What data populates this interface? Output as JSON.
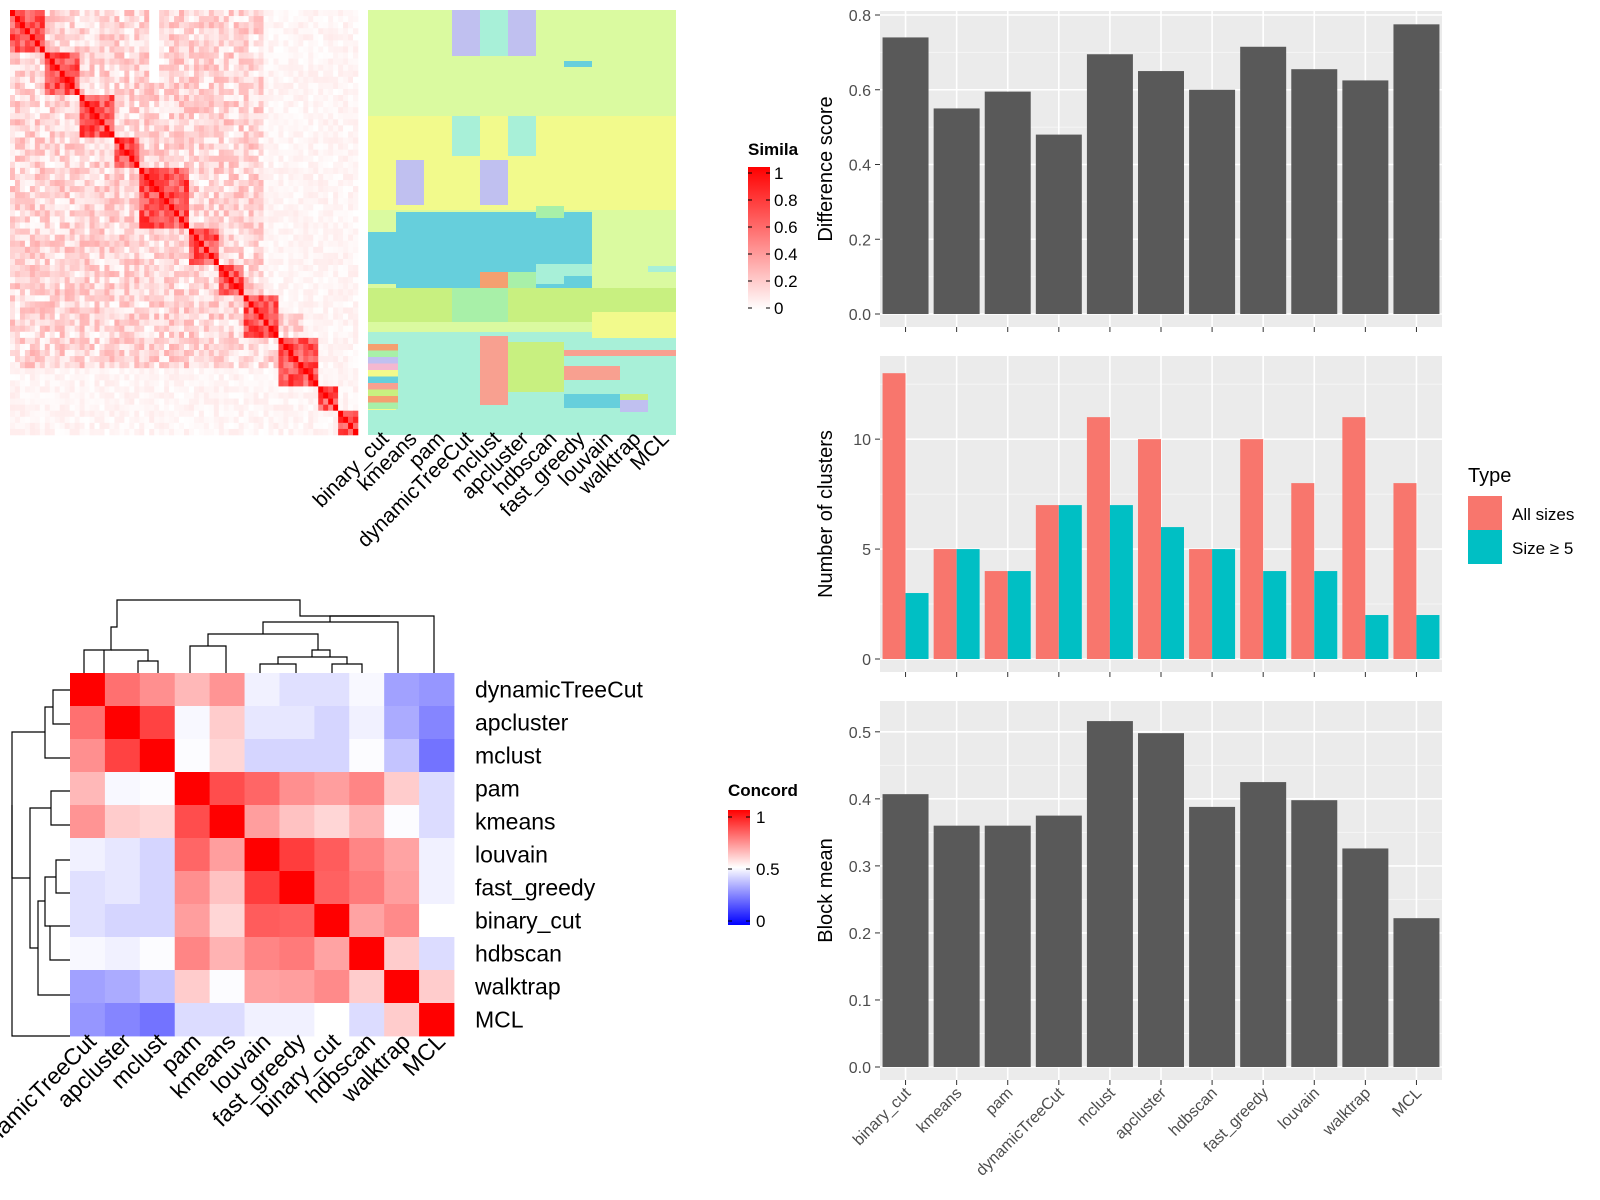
{
  "colors": {
    "bar_grey": "#595959",
    "panel_bg": "#EBEBEB",
    "grid": "#FFFFFF",
    "all_sizes": "#F8766D",
    "size_ge5": "#00BFC4",
    "heat_high": "#FF0000",
    "heat_mid": "#FFFFFF",
    "heat_low": "#0000FF"
  },
  "similarity_legend": {
    "title": "Simila",
    "ticks": [
      "1",
      "0.8",
      "0.6",
      "0.4",
      "0.2",
      "0"
    ]
  },
  "concordance_legend": {
    "title": "Concord",
    "ticks": [
      "1",
      "0.5",
      "0"
    ]
  },
  "top_heatmap": {
    "column_labels": [
      "binary_cut",
      "kmeans",
      "pam",
      "dynamicTreeCut",
      "mclust",
      "apcluster",
      "hdbscan",
      "fast_greedy",
      "louvain",
      "walktrap",
      "MCL"
    ]
  },
  "concordance_heatmap": {
    "labels": [
      "dynamicTreeCut",
      "apcluster",
      "mclust",
      "pam",
      "kmeans",
      "louvain",
      "fast_greedy",
      "binary_cut",
      "hdbscan",
      "walktrap",
      "MCL"
    ],
    "matrix": [
      [
        1.0,
        0.78,
        0.72,
        0.64,
        0.71,
        0.46,
        0.41,
        0.41,
        0.48,
        0.23,
        0.2
      ],
      [
        0.78,
        1.0,
        0.87,
        0.48,
        0.6,
        0.43,
        0.43,
        0.38,
        0.46,
        0.26,
        0.15
      ],
      [
        0.72,
        0.87,
        1.0,
        0.49,
        0.58,
        0.38,
        0.38,
        0.38,
        0.49,
        0.33,
        0.1
      ],
      [
        0.64,
        0.48,
        0.49,
        1.0,
        0.85,
        0.8,
        0.72,
        0.69,
        0.74,
        0.6,
        0.4
      ],
      [
        0.71,
        0.6,
        0.58,
        0.85,
        1.0,
        0.69,
        0.62,
        0.58,
        0.65,
        0.49,
        0.4
      ],
      [
        0.46,
        0.43,
        0.38,
        0.8,
        0.69,
        1.0,
        0.88,
        0.82,
        0.74,
        0.68,
        0.46
      ],
      [
        0.41,
        0.43,
        0.38,
        0.72,
        0.62,
        0.88,
        1.0,
        0.81,
        0.76,
        0.69,
        0.46
      ],
      [
        0.41,
        0.38,
        0.38,
        0.69,
        0.58,
        0.82,
        0.81,
        1.0,
        0.68,
        0.73,
        0.5
      ],
      [
        0.48,
        0.46,
        0.49,
        0.74,
        0.65,
        0.74,
        0.76,
        0.68,
        1.0,
        0.6,
        0.4
      ],
      [
        0.23,
        0.26,
        0.33,
        0.6,
        0.49,
        0.68,
        0.69,
        0.73,
        0.6,
        1.0,
        0.6
      ],
      [
        0.2,
        0.15,
        0.1,
        0.4,
        0.4,
        0.46,
        0.46,
        0.5,
        0.4,
        0.6,
        1.0
      ]
    ]
  },
  "legend_type": {
    "title": "Type",
    "entries": [
      "All sizes",
      "Size ≥ 5"
    ]
  },
  "chart_data": [
    {
      "type": "bar",
      "ylabel": "Difference score",
      "categories": [
        "binary_cut",
        "kmeans",
        "pam",
        "dynamicTreeCut",
        "mclust",
        "apcluster",
        "hdbscan",
        "fast_greedy",
        "louvain",
        "walktrap",
        "MCL"
      ],
      "values": [
        0.74,
        0.55,
        0.595,
        0.48,
        0.695,
        0.65,
        0.6,
        0.715,
        0.655,
        0.625,
        0.775
      ],
      "ylim": [
        0,
        0.8
      ],
      "yticks": [
        "0.0",
        "0.2",
        "0.4",
        "0.6",
        "0.8"
      ],
      "grid": true
    },
    {
      "type": "bar",
      "ylabel": "Number of clusters",
      "categories": [
        "binary_cut",
        "kmeans",
        "pam",
        "dynamicTreeCut",
        "mclust",
        "apcluster",
        "hdbscan",
        "fast_greedy",
        "louvain",
        "walktrap",
        "MCL"
      ],
      "series": [
        {
          "name": "All sizes",
          "values": [
            13,
            5,
            4,
            7,
            11,
            10,
            5,
            10,
            8,
            11,
            8
          ]
        },
        {
          "name": "Size ≥ 5",
          "values": [
            3,
            5,
            4,
            7,
            7,
            6,
            5,
            4,
            4,
            2,
            2
          ]
        }
      ],
      "ylim": [
        0,
        13.6
      ],
      "yticks": [
        "0",
        "5",
        "10"
      ],
      "legend": "right",
      "grid": true
    },
    {
      "type": "bar",
      "ylabel": "Block mean",
      "categories": [
        "binary_cut",
        "kmeans",
        "pam",
        "dynamicTreeCut",
        "mclust",
        "apcluster",
        "hdbscan",
        "fast_greedy",
        "louvain",
        "walktrap",
        "MCL"
      ],
      "values": [
        0.407,
        0.36,
        0.36,
        0.375,
        0.516,
        0.498,
        0.388,
        0.425,
        0.398,
        0.326,
        0.222
      ],
      "ylim": [
        0,
        0.54
      ],
      "yticks": [
        "0.0",
        "0.1",
        "0.2",
        "0.3",
        "0.4",
        "0.5"
      ],
      "grid": true
    }
  ]
}
